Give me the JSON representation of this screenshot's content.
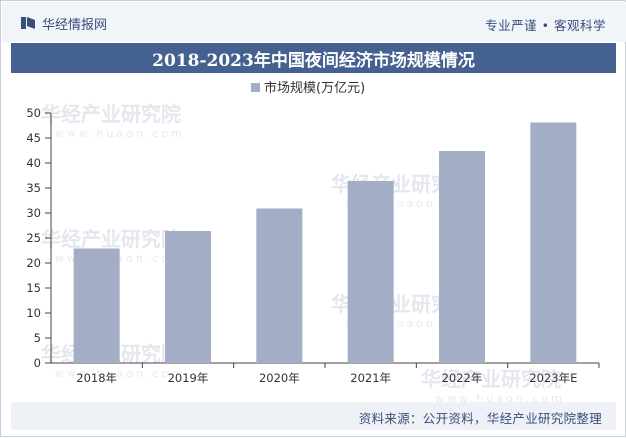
{
  "header": {
    "brand": "华经情报网",
    "tagline_left": "专业严谨",
    "tagline_right": "客观科学"
  },
  "chart_data": {
    "type": "bar",
    "title": "2018-2023年中国夜间经济市场规模情况",
    "categories": [
      "2018年",
      "2019年",
      "2020年",
      "2021年",
      "2022年",
      "2023年E"
    ],
    "series": [
      {
        "name": "市场规模(万亿元)",
        "values": [
          22.9,
          26.4,
          30.9,
          36.4,
          42.4,
          48.1
        ],
        "color": "#a3aec6"
      }
    ],
    "ylim": [
      0,
      50
    ],
    "yticks": [
      0,
      5,
      10,
      15,
      20,
      25,
      30,
      35,
      40,
      45,
      50
    ],
    "legend": "top-center",
    "grid": false
  },
  "footer": {
    "source": "资料来源：公开资料，华经产业研究院整理"
  },
  "watermark": {
    "text_cn": "华经产业研究院",
    "text_en": "www.huaon.com"
  }
}
